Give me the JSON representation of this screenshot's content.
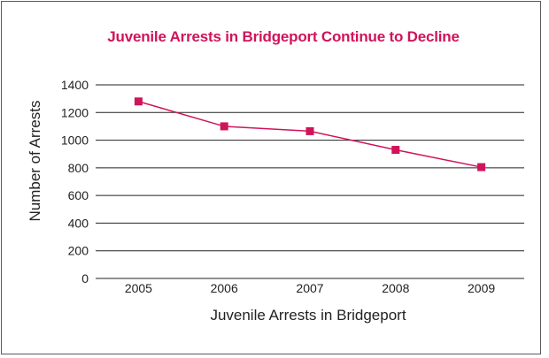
{
  "chart_data": {
    "type": "line",
    "title": "Juvenile Arrests in Bridgeport Continue to Decline",
    "xlabel": "Juvenile Arrests in Bridgeport",
    "ylabel": "Number of Arrests",
    "categories": [
      "2005",
      "2006",
      "2007",
      "2008",
      "2009"
    ],
    "y_ticks": [
      "0",
      "200",
      "400",
      "600",
      "800",
      "1000",
      "1200",
      "1400"
    ],
    "ylim": [
      0,
      1400
    ],
    "grid": true,
    "legend": "none",
    "series": [
      {
        "values": [
          1280,
          1100,
          1065,
          930,
          805
        ]
      }
    ],
    "colors": {
      "title": "#d0135a",
      "line": "#d0135a",
      "marker": "#d0135a",
      "grid": "#222222"
    }
  }
}
